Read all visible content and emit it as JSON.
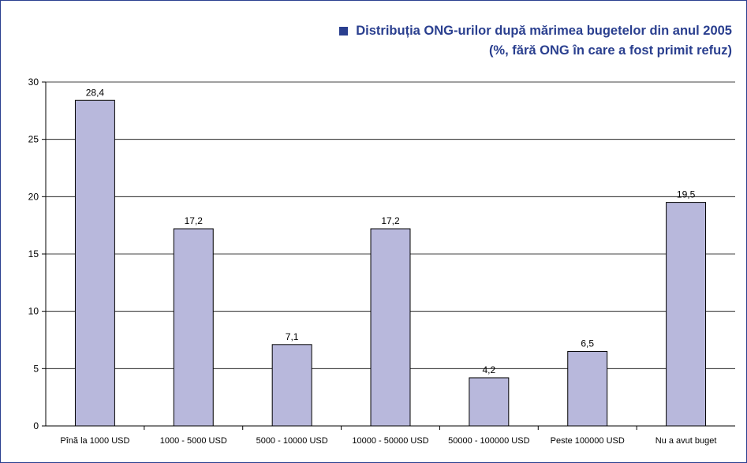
{
  "header": {
    "title_line1": "Distribuția ONG-urilor după mărimea bugetelor din anul 2005",
    "title_line2": "(%, fără ONG în care a fost primit refuz)"
  },
  "colors": {
    "bar_fill": "#b8b8dc",
    "bar_stroke": "#000000",
    "title": "#2a3f8f",
    "border": "#2a3f8f"
  },
  "chart_data": {
    "type": "bar",
    "title": "Distribuția ONG-urilor după mărimea bugetelor din anul 2005",
    "subtitle": "(%, fără ONG în care a fost primit refuz)",
    "categories": [
      "Pînă la 1000 USD",
      "1000 - 5000 USD",
      "5000 - 10000 USD",
      "10000 - 50000 USD",
      "50000 - 100000 USD",
      "Peste 100000 USD",
      "Nu a avut buget"
    ],
    "values": [
      28.4,
      17.2,
      7.1,
      17.2,
      4.2,
      6.5,
      19.5
    ],
    "data_labels": [
      "28,4",
      "17,2",
      "7,1",
      "17,2",
      "4,2",
      "6,5",
      "19,5"
    ],
    "yticks": [
      "0",
      "5",
      "10",
      "15",
      "20",
      "25",
      "30"
    ],
    "ylim": [
      0,
      30
    ],
    "xlabel": "",
    "ylabel": "",
    "grid": true,
    "legend": "none"
  }
}
